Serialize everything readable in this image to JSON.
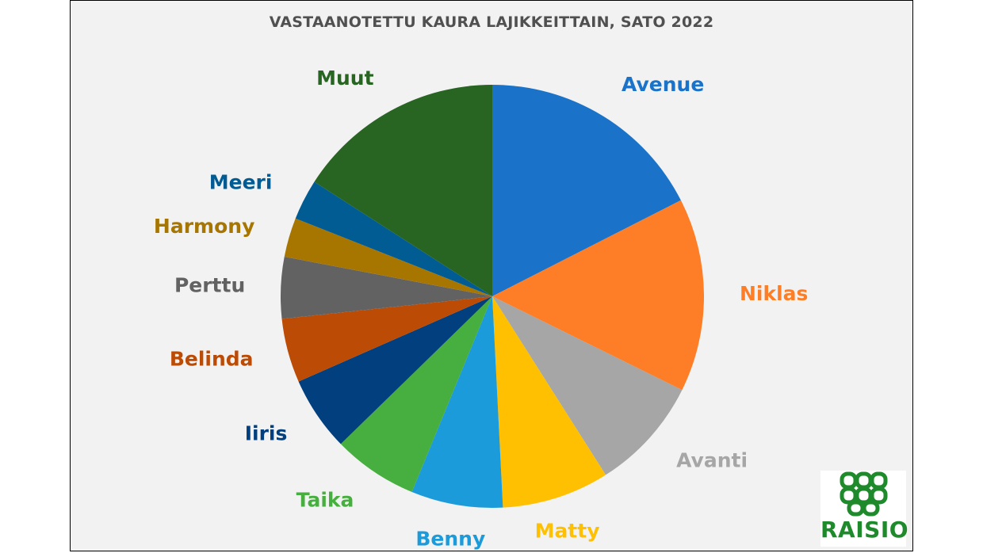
{
  "chart_data": {
    "type": "pie",
    "title": "VASTAANOTETTU KAURA LAJIKKEITTAIN, SATO 2022",
    "slices": [
      {
        "label": "Avenue",
        "value": 17.5,
        "color": "#1a73c9"
      },
      {
        "label": "Niklas",
        "value": 14.8,
        "color": "#fd7e27"
      },
      {
        "label": "Avanti",
        "value": 8.7,
        "color": "#a6a6a6"
      },
      {
        "label": "Matty",
        "value": 8.2,
        "color": "#fec000"
      },
      {
        "label": "Benny",
        "value": 7.0,
        "color": "#1c9bdb"
      },
      {
        "label": "Taika",
        "value": 6.5,
        "color": "#47af3f"
      },
      {
        "label": "Iiris",
        "value": 5.7,
        "color": "#013f7e"
      },
      {
        "label": "Belinda",
        "value": 4.9,
        "color": "#bb4b05"
      },
      {
        "label": "Perttu",
        "value": 4.7,
        "color": "#626262"
      },
      {
        "label": "Harmony",
        "value": 3.0,
        "color": "#a77601"
      },
      {
        "label": "Meeri",
        "value": 3.1,
        "color": "#025c94"
      },
      {
        "label": "Muut",
        "value": 15.9,
        "color": "#286522"
      }
    ],
    "label_colors": {
      "Avenue": "#1a73c9",
      "Niklas": "#fd7e27",
      "Avanti": "#a6a6a6",
      "Matty": "#fec000",
      "Benny": "#1c9bdb",
      "Taika": "#47af3f",
      "Iiris": "#013f7e",
      "Belinda": "#bb4b05",
      "Perttu": "#626262",
      "Harmony": "#a77601",
      "Meeri": "#025c94",
      "Muut": "#286522"
    },
    "legend": "none"
  },
  "logo": {
    "text": "RAISIO",
    "color": "#1e8a2b",
    "icon": "raisio-grain-icon"
  }
}
